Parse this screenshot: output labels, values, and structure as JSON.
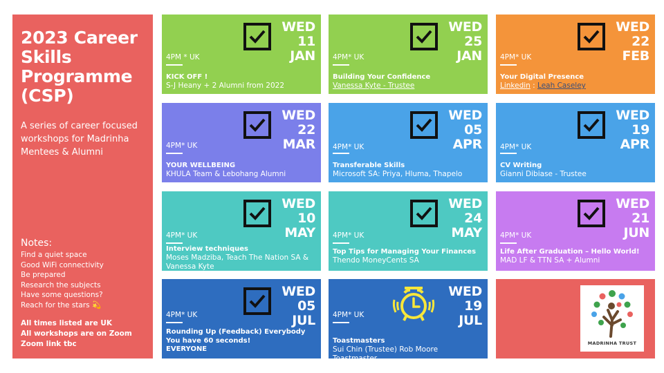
{
  "sidebar": {
    "title": "2023 Career Skills Programme (CSP)",
    "subtitle": "A series of career focused workshops for Madrinha Mentees & Alumni",
    "notes_heading": "Notes:",
    "notes": [
      "Find a quiet space",
      "Good WiFi connectivity",
      "Be prepared",
      "Research the subjects",
      "Have some questions?",
      "Reach for the stars 💫"
    ],
    "times_lines": [
      "All times listed are UK",
      "All workshops are on Zoom",
      "Zoom link tbc"
    ]
  },
  "sessions": [
    {
      "day": "WED",
      "num": "11",
      "month": "JAN",
      "time": "4PM * UK",
      "title": "KICK OFF !",
      "who": "S-J Heany + 2 Alumni from 2022",
      "color": "#92d050"
    },
    {
      "day": "WED",
      "num": "25",
      "month": "JAN",
      "time": "4PM* UK",
      "title": "Building Your Confidence",
      "who": "Vanessa Kyte - Trustee",
      "color": "#92d050"
    },
    {
      "day": "WED",
      "num": "22",
      "month": "FEB",
      "time": "4PM* UK",
      "title": "Your Digital Presence",
      "who_a": "Linkedin",
      "who_sep": " : ",
      "who_b": "Leah Caseley ",
      "color": "#f4943a"
    },
    {
      "day": "WED",
      "num": "22",
      "month": "MAR",
      "time": "4PM* UK",
      "title": "YOUR WELLBEING",
      "who": "KHULA Team & Lebohang Alumni",
      "color": "#7b7fea"
    },
    {
      "day": "WED",
      "num": "05",
      "month": "APR",
      "time": "4PM* UK",
      "title": "Transferable Skills",
      "who": "Microsoft SA: Priya, Hluma, Thapelo",
      "color": "#4aa3e8"
    },
    {
      "day": "WED",
      "num": "19",
      "month": "APR",
      "time": "4PM* UK",
      "title": "CV Writing",
      "who": "Gianni Dibiase - Trustee",
      "color": "#4aa3e8"
    },
    {
      "day": "WED",
      "num": "10",
      "month": "MAY",
      "time": "4PM* UK",
      "title": "Interview techniques",
      "who": "Moses Madziba, Teach The Nation  SA & Vanessa Kyte",
      "color": "#4ec9c2"
    },
    {
      "day": "WED",
      "num": "24",
      "month": "MAY",
      "time": "4PM* UK",
      "title": "Top Tips for Managing Your Finances",
      "who": "Thendo MoneyCents SA",
      "color": "#4ec9c2"
    },
    {
      "day": "WED",
      "num": "21",
      "month": "JUN",
      "time": "4PM* UK",
      "title": "Life After Graduation – Hello World!",
      "who": "MAD LF & TTN SA + Alumni",
      "color": "#c77bf0"
    },
    {
      "day": "WED",
      "num": "05",
      "month": "JUL",
      "time": "4PM* UK",
      "title_lines": [
        "Rounding Up (Feedback) Everybody",
        "You have 60 seconds!",
        "EVERYONE"
      ],
      "color": "#2e6dbf"
    },
    {
      "day": "WED",
      "num": "19",
      "month": "JUL",
      "time": "4PM* UK",
      "title": "Toastmasters",
      "who": "Sui Chin (Trustee) Rob Moore Toastmaster",
      "color": "#2e6dbf"
    }
  ],
  "logo": {
    "text": "MADRINHA TRUST"
  },
  "icons": {
    "done": "checkbox-checked-icon",
    "upcoming": "alarm-clock-icon"
  }
}
